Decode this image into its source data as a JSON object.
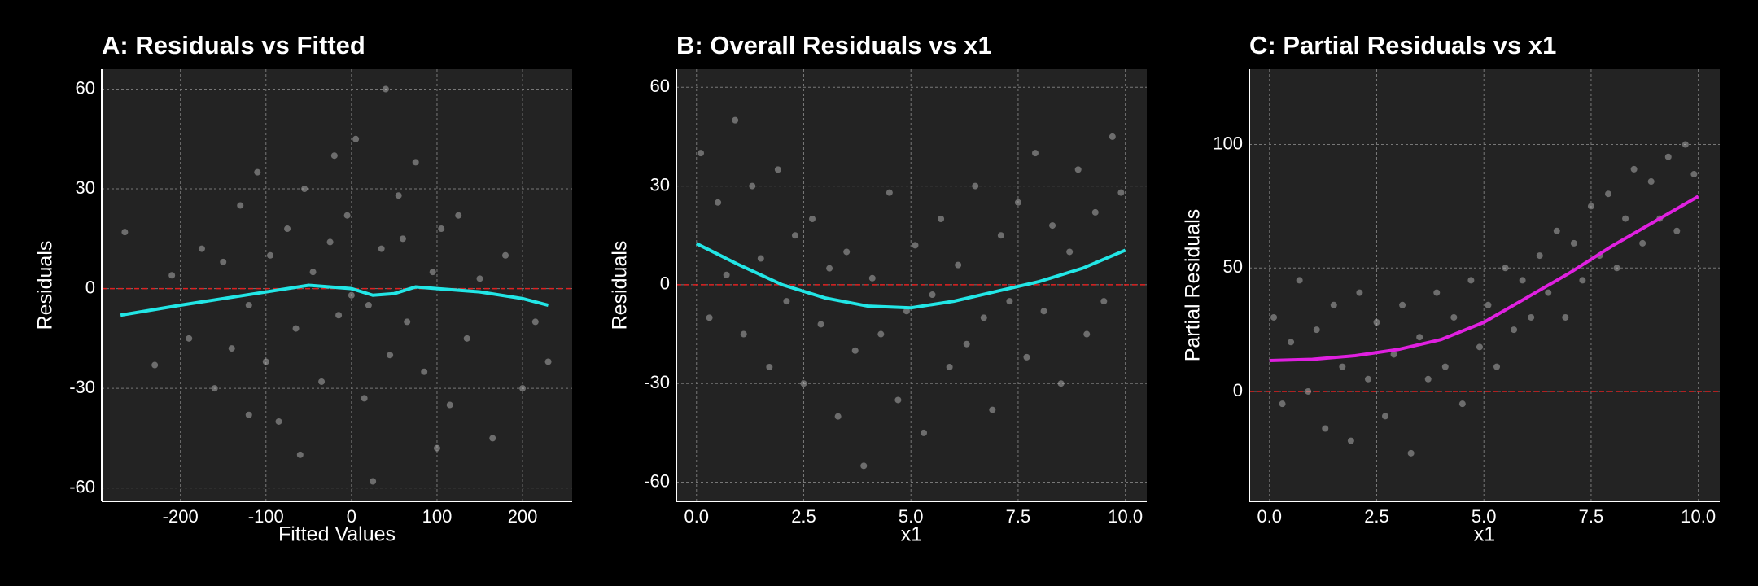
{
  "chart_data": [
    {
      "type": "scatter",
      "title": "A: Residuals vs Fitted",
      "xlabel": "Fitted Values",
      "ylabel": "Residuals",
      "xlim": [
        -292,
        258
      ],
      "ylim": [
        -64,
        66
      ],
      "xticks": [
        -200,
        -100,
        0,
        100,
        200
      ],
      "yticks": [
        -60,
        -30,
        0,
        30,
        60
      ],
      "grid": true,
      "hline": 0,
      "hline_color": "#e02020",
      "point_color": "#c8c8c8",
      "smooth_color": "#22e6e6",
      "points": {
        "x": [
          -265,
          -230,
          -210,
          -190,
          -175,
          -160,
          -150,
          -140,
          -130,
          -120,
          -110,
          -100,
          -95,
          -85,
          -75,
          -65,
          -55,
          -45,
          -35,
          -25,
          -15,
          -5,
          5,
          15,
          25,
          35,
          45,
          55,
          65,
          75,
          85,
          95,
          105,
          115,
          125,
          135,
          150,
          165,
          180,
          200,
          215,
          230,
          -60,
          -20,
          20,
          60,
          100,
          -120,
          40,
          0
        ],
        "y": [
          17,
          -23,
          4,
          -15,
          12,
          -30,
          8,
          -18,
          25,
          -5,
          35,
          -22,
          10,
          -40,
          18,
          -12,
          30,
          5,
          -28,
          14,
          -8,
          22,
          45,
          -33,
          -58,
          12,
          -20,
          28,
          -10,
          38,
          -25,
          5,
          18,
          -35,
          22,
          -15,
          3,
          -45,
          10,
          -30,
          -10,
          -22,
          -50,
          40,
          -5,
          15,
          -48,
          -38,
          60,
          -2
        ]
      },
      "smooth": {
        "x": [
          -270,
          -200,
          -100,
          -50,
          0,
          25,
          50,
          75,
          100,
          150,
          200,
          230
        ],
        "y": [
          -8,
          -5,
          -1,
          1,
          0,
          -2,
          -1.5,
          0.5,
          0,
          -1,
          -3,
          -5
        ]
      }
    },
    {
      "type": "scatter",
      "title": "B: Overall Residuals vs x1",
      "xlabel": "x1",
      "ylabel": "Residuals",
      "xlim": [
        -0.47,
        10.5
      ],
      "ylim": [
        -65.8,
        65.5
      ],
      "xticks": [
        {
          "value": 0,
          "label": "0.0"
        },
        2.5,
        {
          "value": 5,
          "label": "5.0"
        },
        7.5,
        {
          "value": 10,
          "label": "10.0"
        }
      ],
      "yticks": [
        -60,
        -30,
        0,
        30,
        60
      ],
      "grid": true,
      "hline": 0,
      "hline_color": "#e02020",
      "point_color": "#c8c8c8",
      "smooth_color": "#22e6e6",
      "points": {
        "x": [
          0.1,
          0.3,
          0.5,
          0.7,
          0.9,
          1.1,
          1.3,
          1.5,
          1.7,
          1.9,
          2.1,
          2.3,
          2.5,
          2.7,
          2.9,
          3.1,
          3.3,
          3.5,
          3.7,
          3.9,
          4.1,
          4.3,
          4.5,
          4.7,
          4.9,
          5.1,
          5.3,
          5.5,
          5.7,
          5.9,
          6.1,
          6.3,
          6.5,
          6.7,
          6.9,
          7.1,
          7.3,
          7.5,
          7.7,
          7.9,
          8.1,
          8.3,
          8.5,
          8.7,
          8.9,
          9.1,
          9.3,
          9.5,
          9.7,
          9.9
        ],
        "y": [
          40,
          -10,
          25,
          3,
          50,
          -15,
          30,
          8,
          -25,
          35,
          -5,
          15,
          -30,
          20,
          -12,
          5,
          -40,
          10,
          -20,
          -55,
          2,
          -15,
          28,
          -35,
          -8,
          12,
          -45,
          -3,
          20,
          -25,
          6,
          -18,
          30,
          -10,
          -38,
          15,
          -5,
          25,
          -22,
          40,
          -8,
          18,
          -30,
          10,
          35,
          -15,
          22,
          -5,
          45,
          28
        ]
      },
      "smooth": {
        "x": [
          0,
          1,
          2,
          3,
          4,
          5,
          6,
          7,
          8,
          9,
          10
        ],
        "y": [
          12.5,
          6,
          0,
          -4,
          -6.5,
          -7,
          -5,
          -2,
          1,
          5,
          10.5
        ]
      }
    },
    {
      "type": "scatter",
      "title": "C: Partial Residuals vs x1",
      "xlabel": "x1",
      "ylabel": "Partial Residuals",
      "xlim": [
        -0.47,
        10.5
      ],
      "ylim": [
        -44.5,
        130.5
      ],
      "xticks": [
        {
          "value": 0,
          "label": "0.0"
        },
        2.5,
        {
          "value": 5,
          "label": "5.0"
        },
        7.5,
        {
          "value": 10,
          "label": "10.0"
        }
      ],
      "yticks": [
        0,
        50,
        100
      ],
      "grid": true,
      "hline": 0,
      "hline_color": "#e02020",
      "point_color": "#c8c8c8",
      "smooth_color": "#e020e0",
      "points": {
        "x": [
          0.1,
          0.3,
          0.5,
          0.7,
          0.9,
          1.1,
          1.3,
          1.5,
          1.7,
          1.9,
          2.1,
          2.3,
          2.5,
          2.7,
          2.9,
          3.1,
          3.3,
          3.5,
          3.7,
          3.9,
          4.1,
          4.3,
          4.5,
          4.7,
          4.9,
          5.1,
          5.3,
          5.5,
          5.7,
          5.9,
          6.1,
          6.3,
          6.5,
          6.7,
          6.9,
          7.1,
          7.3,
          7.5,
          7.7,
          7.9,
          8.1,
          8.3,
          8.5,
          8.7,
          8.9,
          9.1,
          9.3,
          9.5,
          9.7,
          9.9
        ],
        "y": [
          30,
          -5,
          20,
          45,
          0,
          25,
          -15,
          35,
          10,
          -20,
          40,
          5,
          28,
          -10,
          15,
          35,
          -25,
          22,
          5,
          40,
          10,
          30,
          -5,
          45,
          18,
          35,
          10,
          50,
          25,
          45,
          30,
          55,
          40,
          65,
          30,
          60,
          45,
          75,
          55,
          80,
          50,
          70,
          90,
          60,
          85,
          70,
          95,
          65,
          100,
          88
        ]
      },
      "smooth": {
        "x": [
          0,
          1,
          2,
          3,
          4,
          5,
          6,
          7,
          8,
          9,
          10
        ],
        "y": [
          12.5,
          13,
          14.5,
          17,
          21,
          28,
          38,
          48,
          59,
          69,
          79
        ]
      }
    }
  ]
}
